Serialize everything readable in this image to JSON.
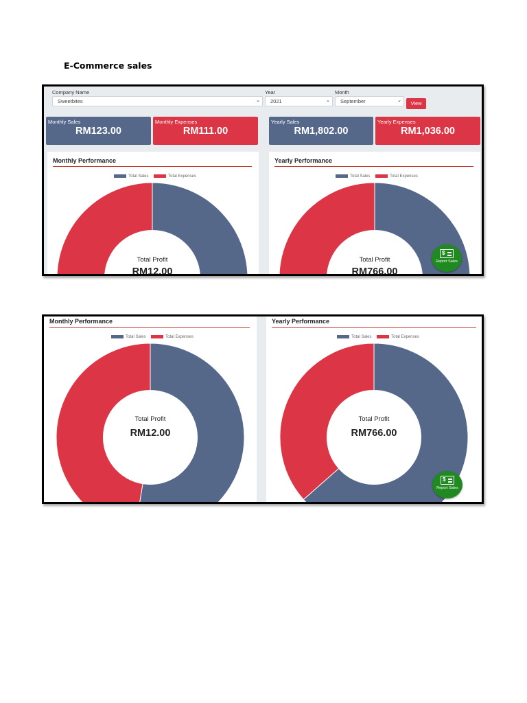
{
  "document": {
    "title": "E-Commerce sales"
  },
  "filters": {
    "company_label": "Company Name",
    "company_value": "Sweetbites",
    "year_label": "Year",
    "year_value": "2021",
    "month_label": "Month",
    "month_value": "September",
    "view_label": "View"
  },
  "stats": {
    "monthly_sales_label": "Monthly Sales",
    "monthly_sales_value": "RM123.00",
    "monthly_expenses_label": "Monthly Expenses",
    "monthly_expenses_value": "RM111.00",
    "yearly_sales_label": "Yearly Sales",
    "yearly_sales_value": "RM1,802.00",
    "yearly_expenses_label": "Yearly Expenses",
    "yearly_expenses_value": "RM1,036.00"
  },
  "legend": {
    "sales": "Total Sales",
    "expenses": "Total Expenses"
  },
  "center": {
    "label": "Total Profit"
  },
  "monthly": {
    "title": "Monthly Performance",
    "profit": "RM12.00"
  },
  "yearly": {
    "title": "Yearly Performance",
    "profit": "RM766.00"
  },
  "report_button": {
    "label": "Report Sales",
    "icon": "money-bill-icon"
  },
  "colors": {
    "sales": "#56688a",
    "expenses": "#dc3545",
    "report": "#1f8a1f"
  },
  "chart_data": [
    {
      "type": "pie",
      "title": "Monthly Performance",
      "categories": [
        "Total Sales",
        "Total Expenses"
      ],
      "values": [
        123,
        111
      ]
    },
    {
      "type": "pie",
      "title": "Yearly Performance",
      "categories": [
        "Total Sales",
        "Total Expenses"
      ],
      "values": [
        1802,
        1036
      ]
    }
  ]
}
